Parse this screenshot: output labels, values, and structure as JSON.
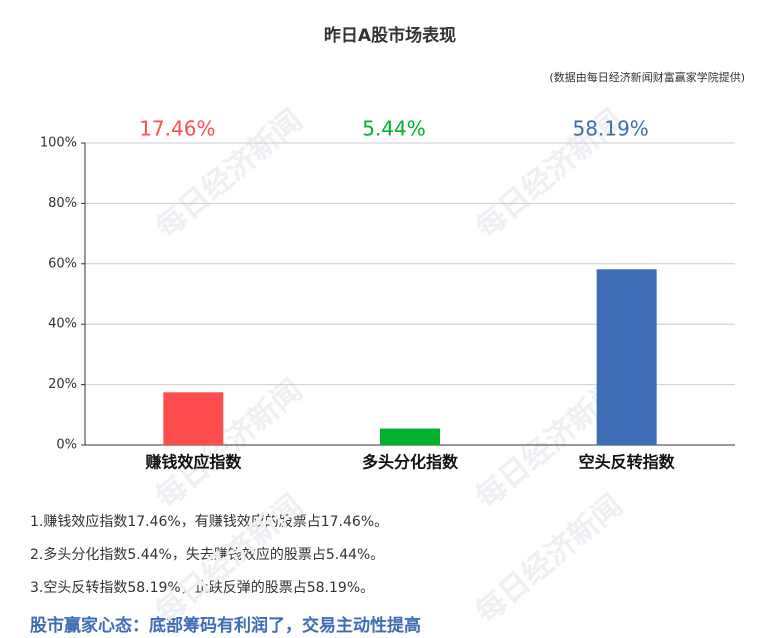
{
  "chart_data": {
    "type": "bar",
    "title": "昨日A股市场表现",
    "subtitle": "(数据由每日经济新闻财富赢家学院提供)",
    "categories": [
      "赚钱效应指数",
      "多头分化指数",
      "空头反转指数"
    ],
    "values": [
      17.46,
      5.44,
      58.19
    ],
    "value_labels": [
      "17.46%",
      "5.44%",
      "58.19%"
    ],
    "colors": [
      "#ff4d4d",
      "#00b22d",
      "#3d6db5"
    ],
    "ylim": [
      0,
      100
    ],
    "yticks": [
      {
        "value": 0,
        "label": "0%"
      },
      {
        "value": 20,
        "label": "20%"
      },
      {
        "value": 40,
        "label": "40%"
      },
      {
        "value": 60,
        "label": "60%"
      },
      {
        "value": 80,
        "label": "80%"
      },
      {
        "value": 100,
        "label": "100%"
      }
    ],
    "grid": true
  },
  "notes": [
    "1.赚钱效应指数17.46%，有赚钱效应的股票占17.46%。",
    "2.多头分化指数5.44%，失去赚钱效应的股票占5.44%。",
    "3.空头反转指数58.19%，止跌反弹的股票占58.19%。"
  ],
  "footer": "股市赢家心态：底部筹码有利润了，交易主动性提高",
  "watermark": "每日经济新闻"
}
